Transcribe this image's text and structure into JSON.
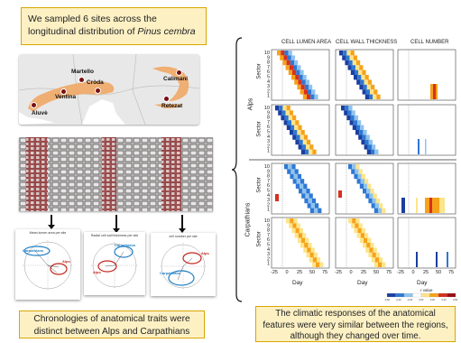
{
  "intro": {
    "text_prefix": "We sampled 6 sites across the longitudinal distribution of ",
    "species": "Pinus cembra"
  },
  "map": {
    "sites": [
      "Martello",
      "Cròda",
      "Ventina",
      "Aluvè",
      "Calimani",
      "Retezat"
    ]
  },
  "pca_panels": [
    {
      "title": "Mean lumen area per site",
      "alps_label": "Alps",
      "carp_label": "Carpathians"
    },
    {
      "title": "Radial cell wall thickness per site",
      "alps_label": "Alps",
      "carp_label": "Carpathians"
    },
    {
      "title": "cell number per site",
      "alps_label": "Alps",
      "carp_label": "Carpathians"
    }
  ],
  "conclusion_left": "Chronologies of anatomical traits were distinct between Alps and Carpathians",
  "conclusion_right": "The climatic responses of the anatomical features were very similar between the regions, although they changed over time.",
  "heatmap": {
    "columns": [
      "CELL LUMEN AREA",
      "CELL WALL THICKNESS",
      "CELL NUMBER"
    ],
    "regions": [
      "Alps",
      "Carpathians"
    ],
    "row_axis_label": "Sector",
    "sector_ticks": [
      "10",
      "9",
      "8",
      "7",
      "6",
      "5",
      "4",
      "3",
      "2",
      "1"
    ],
    "x_ticks": [
      "-25",
      "0",
      "25",
      "50",
      "75"
    ],
    "x_label": "Day",
    "legend_label": "r value",
    "legend_ticks": [
      "-0.60",
      "-0.40",
      "-0.20",
      "0.00",
      "0.20",
      "0.40",
      "0.60"
    ],
    "colors": {
      "neg_strong": "#1b3fa0",
      "neg": "#2f78d3",
      "neg_light": "#8fc3ee",
      "pos_light": "#fde58a",
      "pos": "#f6a21a",
      "pos_strong": "#d7301f",
      "max": "#9a0d12"
    }
  }
}
